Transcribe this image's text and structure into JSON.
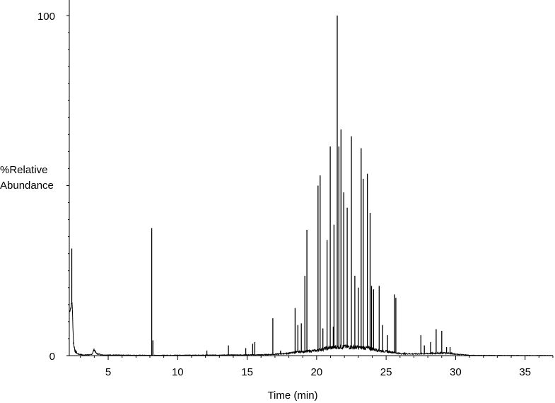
{
  "chart_data": {
    "type": "line",
    "title": "",
    "xlabel": "Time (min)",
    "ylabel": [
      "%Relative",
      "Abundance"
    ],
    "xlim": [
      2.2,
      37.0
    ],
    "ylim": [
      0,
      100
    ],
    "x_ticks": [
      5,
      10,
      15,
      20,
      25,
      30,
      35
    ],
    "y_ticks": [
      0,
      100
    ],
    "grid": false,
    "legend": "none",
    "line_color": "#000000",
    "baseline": [
      [
        2.2,
        13
      ],
      [
        2.3,
        14
      ],
      [
        2.4,
        16
      ],
      [
        2.45,
        10
      ],
      [
        2.5,
        4
      ],
      [
        2.6,
        1.5
      ],
      [
        2.8,
        0.5
      ],
      [
        3.2,
        0.2
      ],
      [
        3.8,
        0.3
      ],
      [
        4.0,
        1.8
      ],
      [
        4.15,
        0.6
      ],
      [
        4.6,
        0.2
      ],
      [
        6.0,
        0.15
      ],
      [
        8.0,
        0.1
      ],
      [
        12.0,
        0.15
      ],
      [
        16.0,
        0.25
      ],
      [
        17.0,
        0.4
      ],
      [
        18.0,
        0.7
      ],
      [
        18.5,
        1.0
      ],
      [
        19.0,
        1.2
      ],
      [
        19.5,
        1.3
      ],
      [
        20.0,
        1.5
      ],
      [
        20.5,
        2.0
      ],
      [
        21.0,
        2.3
      ],
      [
        21.5,
        2.6
      ],
      [
        22.0,
        2.6
      ],
      [
        22.5,
        2.5
      ],
      [
        23.0,
        2.4
      ],
      [
        23.5,
        2.3
      ],
      [
        24.0,
        2.0
      ],
      [
        24.5,
        1.5
      ],
      [
        25.0,
        1.2
      ],
      [
        25.5,
        1.0
      ],
      [
        26.0,
        0.6
      ],
      [
        27.0,
        0.5
      ],
      [
        28.0,
        0.6
      ],
      [
        29.0,
        0.8
      ],
      [
        29.5,
        0.8
      ],
      [
        30.0,
        0.4
      ],
      [
        30.5,
        0.3
      ],
      [
        31.0,
        0.1
      ],
      [
        33.0,
        0.05
      ],
      [
        37.0,
        0.05
      ]
    ],
    "peaks": [
      {
        "x": 2.38,
        "y": 31.5
      },
      {
        "x": 8.13,
        "y": 37.5
      },
      {
        "x": 8.22,
        "y": 4.5
      },
      {
        "x": 12.1,
        "y": 1.5
      },
      {
        "x": 13.65,
        "y": 3.0
      },
      {
        "x": 14.9,
        "y": 2.2
      },
      {
        "x": 15.4,
        "y": 3.5
      },
      {
        "x": 15.55,
        "y": 4.0
      },
      {
        "x": 16.85,
        "y": 11.0
      },
      {
        "x": 17.4,
        "y": 1.5
      },
      {
        "x": 18.45,
        "y": 14.0
      },
      {
        "x": 18.65,
        "y": 9.0
      },
      {
        "x": 18.9,
        "y": 9.5
      },
      {
        "x": 19.3,
        "y": 37.0
      },
      {
        "x": 19.15,
        "y": 23.5
      },
      {
        "x": 20.1,
        "y": 50.0
      },
      {
        "x": 20.25,
        "y": 53.0
      },
      {
        "x": 20.45,
        "y": 8.0
      },
      {
        "x": 20.75,
        "y": 34.0
      },
      {
        "x": 20.98,
        "y": 61.5
      },
      {
        "x": 21.2,
        "y": 8.5
      },
      {
        "x": 21.25,
        "y": 38.5
      },
      {
        "x": 21.48,
        "y": 100.0
      },
      {
        "x": 21.6,
        "y": 61.5
      },
      {
        "x": 21.75,
        "y": 66.5
      },
      {
        "x": 21.95,
        "y": 48.0
      },
      {
        "x": 22.2,
        "y": 43.5
      },
      {
        "x": 22.5,
        "y": 64.5
      },
      {
        "x": 22.75,
        "y": 23.5
      },
      {
        "x": 23.0,
        "y": 20.0
      },
      {
        "x": 23.2,
        "y": 61.0
      },
      {
        "x": 23.35,
        "y": 52.0
      },
      {
        "x": 23.65,
        "y": 53.5
      },
      {
        "x": 23.85,
        "y": 42.0
      },
      {
        "x": 23.95,
        "y": 20.5
      },
      {
        "x": 24.1,
        "y": 19.5
      },
      {
        "x": 24.5,
        "y": 20.5
      },
      {
        "x": 24.75,
        "y": 9.0
      },
      {
        "x": 25.1,
        "y": 6.0
      },
      {
        "x": 25.6,
        "y": 18.0
      },
      {
        "x": 25.7,
        "y": 17.0
      },
      {
        "x": 27.5,
        "y": 6.0
      },
      {
        "x": 27.75,
        "y": 3.0
      },
      {
        "x": 28.2,
        "y": 4.0
      },
      {
        "x": 28.6,
        "y": 7.8
      },
      {
        "x": 29.0,
        "y": 7.3
      },
      {
        "x": 29.35,
        "y": 2.5
      },
      {
        "x": 29.6,
        "y": 2.5
      }
    ]
  }
}
